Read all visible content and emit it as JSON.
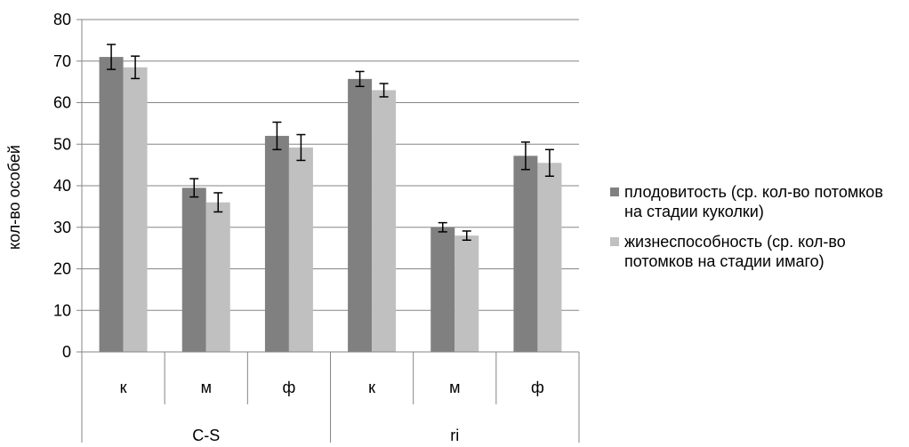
{
  "chart_data": {
    "type": "bar",
    "ylabel": "кол-во особей",
    "xlabel": "",
    "ylim": [
      0,
      80
    ],
    "yticks": [
      0,
      10,
      20,
      30,
      40,
      50,
      60,
      70,
      80
    ],
    "grid": true,
    "legend_position": "right",
    "groups": [
      {
        "label": "C-S",
        "categories": [
          "к",
          "м",
          "ф"
        ]
      },
      {
        "label": "ri",
        "categories": [
          "к",
          "м",
          "ф"
        ]
      }
    ],
    "categories": [
      "к",
      "м",
      "ф",
      "к",
      "м",
      "ф"
    ],
    "series": [
      {
        "name": "плодовитость (ср. кол-во потомков на стадии куколки)",
        "values": [
          71,
          39.5,
          52,
          65.7,
          30,
          47.2
        ],
        "errors": [
          3,
          2.2,
          3.3,
          1.8,
          1.1,
          3.3
        ]
      },
      {
        "name": "жизнеспособность (ср. кол-во потомков на стадии имаго)",
        "values": [
          68.5,
          36,
          49.2,
          63,
          28,
          45.5
        ],
        "errors": [
          2.7,
          2.3,
          3.1,
          1.6,
          1.1,
          3.2
        ]
      }
    ]
  },
  "colors": {
    "series_1": "#808080",
    "series_2": "#c0c0c0",
    "grid": "#868686",
    "axis": "#868686",
    "error_bar": "#000000"
  },
  "legend": {
    "item_1": "плодовитость (ср. кол-во потомков на стадии куколки)",
    "item_2": "жизнеспособность (ср. кол-во потомков на стадии имаго)"
  }
}
